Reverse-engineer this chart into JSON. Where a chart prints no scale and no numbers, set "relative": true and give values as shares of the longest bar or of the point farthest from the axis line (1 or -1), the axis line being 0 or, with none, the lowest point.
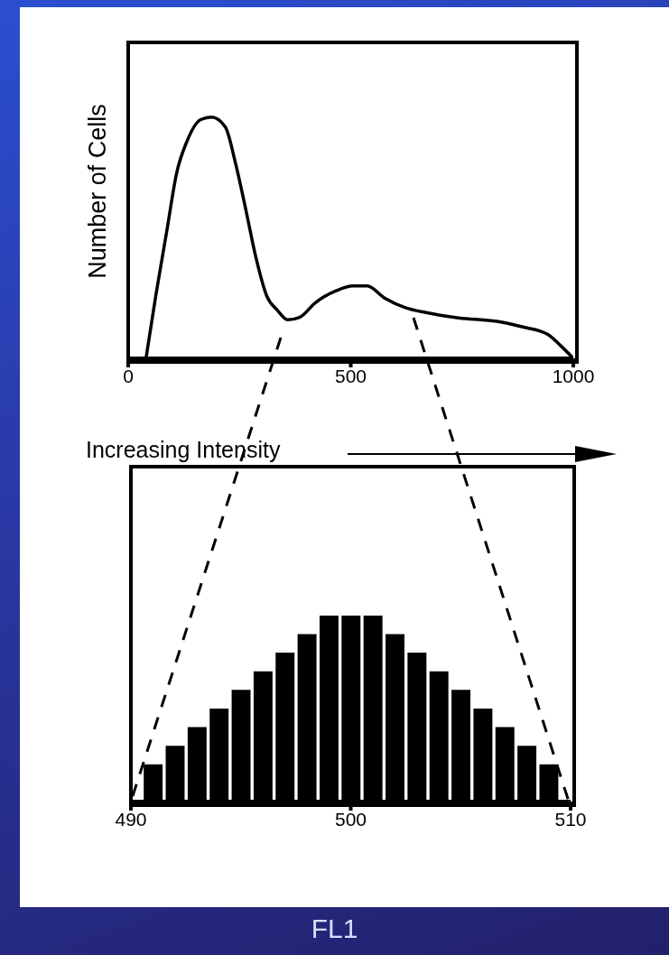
{
  "chart_data": [
    {
      "type": "line",
      "relative": true,
      "ylabel": "Number of Cells",
      "xlabel": "Increasing Intensity",
      "xlim": [
        0,
        1000
      ],
      "xticks": [
        0,
        500,
        1000
      ],
      "color": "#000000",
      "marker": "none",
      "x": [
        40,
        62,
        86,
        109,
        132,
        163,
        187,
        218,
        241,
        265,
        288,
        311,
        335,
        358,
        385,
        420,
        467,
        506,
        537,
        576,
        623,
        669,
        732,
        840,
        887,
        942,
        973,
        1000
      ],
      "values": [
        0,
        0.26,
        0.52,
        0.77,
        0.9,
        0.99,
        1,
        0.96,
        0.81,
        0.61,
        0.41,
        0.26,
        0.2,
        0.16,
        0.17,
        0.23,
        0.28,
        0.3,
        0.3,
        0.25,
        0.21,
        0.19,
        0.17,
        0.15,
        0.13,
        0.1,
        0.05,
        0
      ]
    },
    {
      "type": "bar",
      "relative": true,
      "xlabel": "FL1",
      "xlim": [
        490,
        510
      ],
      "xticks": [
        490,
        500,
        510
      ],
      "color": "#000000",
      "x": [
        491,
        492,
        493,
        494,
        495,
        496,
        497,
        498,
        499,
        500,
        501,
        502,
        503,
        504,
        505,
        506,
        507,
        508,
        509
      ],
      "values": [
        0.2,
        0.3,
        0.4,
        0.5,
        0.6,
        0.7,
        0.8,
        0.9,
        1,
        1,
        1,
        0.9,
        0.8,
        0.7,
        0.6,
        0.5,
        0.4,
        0.3,
        0.2
      ]
    }
  ]
}
